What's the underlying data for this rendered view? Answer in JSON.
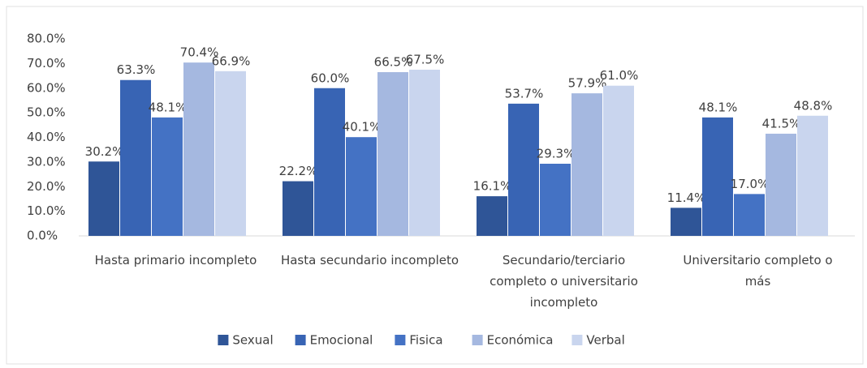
{
  "chart_data": {
    "type": "bar",
    "categories": [
      "Hasta primario incompleto",
      "Hasta secundario incompleto",
      "Secundario/terciario completo o universitario incompleto",
      "Universitario completo o más"
    ],
    "series": [
      {
        "name": "Sexual",
        "color": "#2f5597",
        "values": [
          30.2,
          22.2,
          16.1,
          11.4
        ],
        "value_labels": [
          "30.2%",
          "22.2%",
          "16.1%",
          "11.4%"
        ]
      },
      {
        "name": "Emocional",
        "color": "#3864b4",
        "values": [
          63.3,
          60.0,
          53.7,
          48.1
        ],
        "value_labels": [
          "63.3%",
          "60.0%",
          "53.7%",
          "48.1%"
        ]
      },
      {
        "name": "Fisica",
        "color": "#4472c4",
        "values": [
          48.1,
          40.1,
          29.3,
          17.0
        ],
        "value_labels": [
          "48.1%",
          "40.1%",
          "29.3%",
          "17.0%"
        ]
      },
      {
        "name": "Económica",
        "color": "#a5b8e0",
        "values": [
          70.4,
          66.5,
          57.9,
          41.5
        ],
        "value_labels": [
          "70.4%",
          "66.5%",
          "57.9%",
          "41.5%"
        ]
      },
      {
        "name": "Verbal",
        "color": "#c9d5ee",
        "values": [
          66.9,
          67.5,
          61.0,
          48.8
        ],
        "value_labels": [
          "66.9%",
          "67.5%",
          "61.0%",
          "48.8%"
        ]
      }
    ],
    "ylim": [
      0,
      80
    ],
    "yticks": [
      {
        "value": 0,
        "label": "0.0%"
      },
      {
        "value": 10,
        "label": "10.0%"
      },
      {
        "value": 20,
        "label": "20.0%"
      },
      {
        "value": 30,
        "label": "30.0%"
      },
      {
        "value": 40,
        "label": "40.0%"
      },
      {
        "value": 50,
        "label": "50.0%"
      },
      {
        "value": 60,
        "label": "60.0%"
      },
      {
        "value": 70,
        "label": "70.0%"
      },
      {
        "value": 80,
        "label": "80.0%"
      }
    ],
    "grid": false,
    "legend": "bottom"
  }
}
